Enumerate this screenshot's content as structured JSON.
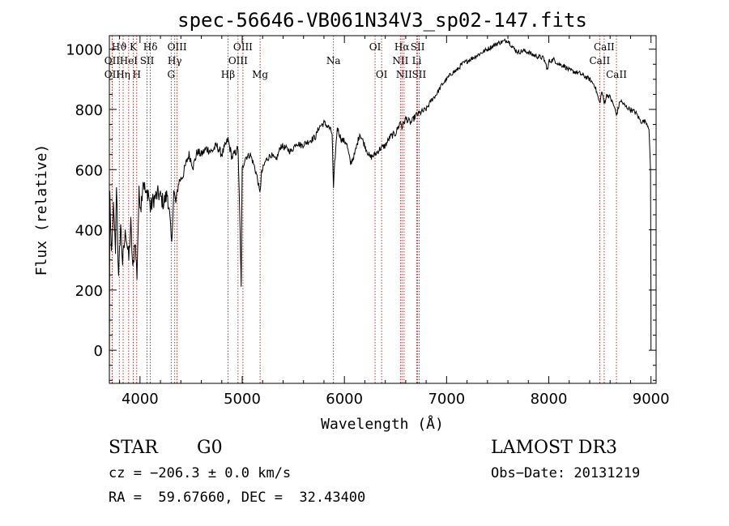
{
  "chart_data": {
    "type": "line",
    "title": "spec-56646-VB061N34V3_sp02-147.fits",
    "xlabel": "Wavelength (Å)",
    "ylabel": "Flux (relative)",
    "xlim": [
      3700,
      9050
    ],
    "ylim": [
      -110,
      1045
    ],
    "xticks": [
      4000,
      5000,
      6000,
      7000,
      8000,
      9000
    ],
    "xtick_labels": [
      "4000",
      "5000",
      "6000",
      "7000",
      "8000",
      "9000"
    ],
    "yticks": [
      0,
      200,
      400,
      600,
      800,
      1000
    ],
    "ytick_labels": [
      "0",
      "200",
      "400",
      "600",
      "800",
      "1000"
    ],
    "spectrum_anchors": [
      [
        3700,
        -110
      ],
      [
        3705,
        520
      ],
      [
        3720,
        300
      ],
      [
        3740,
        470
      ],
      [
        3760,
        330
      ],
      [
        3770,
        560
      ],
      [
        3790,
        230
      ],
      [
        3810,
        420
      ],
      [
        3830,
        290
      ],
      [
        3860,
        400
      ],
      [
        3890,
        300
      ],
      [
        3910,
        420
      ],
      [
        3930,
        260
      ],
      [
        3950,
        370
      ],
      [
        3970,
        250
      ],
      [
        3990,
        520
      ],
      [
        4010,
        480
      ],
      [
        4030,
        570
      ],
      [
        4060,
        510
      ],
      [
        4080,
        530
      ],
      [
        4101,
        470
      ],
      [
        4130,
        500
      ],
      [
        4180,
        520
      ],
      [
        4230,
        490
      ],
      [
        4270,
        520
      ],
      [
        4300,
        400
      ],
      [
        4310,
        350
      ],
      [
        4330,
        530
      ],
      [
        4350,
        490
      ],
      [
        4380,
        560
      ],
      [
        4420,
        580
      ],
      [
        4450,
        620
      ],
      [
        4480,
        650
      ],
      [
        4520,
        610
      ],
      [
        4560,
        660
      ],
      [
        4600,
        650
      ],
      [
        4650,
        670
      ],
      [
        4700,
        660
      ],
      [
        4750,
        680
      ],
      [
        4800,
        650
      ],
      [
        4861,
        700
      ],
      [
        4900,
        640
      ],
      [
        4960,
        670
      ],
      [
        4980,
        380
      ],
      [
        4990,
        220
      ],
      [
        5000,
        600
      ],
      [
        5030,
        640
      ],
      [
        5080,
        650
      ],
      [
        5120,
        610
      ],
      [
        5150,
        570
      ],
      [
        5172,
        520
      ],
      [
        5190,
        590
      ],
      [
        5230,
        630
      ],
      [
        5280,
        650
      ],
      [
        5330,
        630
      ],
      [
        5380,
        680
      ],
      [
        5430,
        670
      ],
      [
        5480,
        660
      ],
      [
        5530,
        690
      ],
      [
        5580,
        680
      ],
      [
        5630,
        690
      ],
      [
        5680,
        700
      ],
      [
        5720,
        710
      ],
      [
        5750,
        740
      ],
      [
        5800,
        755
      ],
      [
        5850,
        740
      ],
      [
        5880,
        720
      ],
      [
        5893,
        530
      ],
      [
        5905,
        620
      ],
      [
        5930,
        740
      ],
      [
        5970,
        700
      ],
      [
        6020,
        690
      ],
      [
        6060,
        620
      ],
      [
        6100,
        650
      ],
      [
        6150,
        720
      ],
      [
        6200,
        680
      ],
      [
        6250,
        640
      ],
      [
        6300,
        650
      ],
      [
        6350,
        670
      ],
      [
        6400,
        680
      ],
      [
        6450,
        710
      ],
      [
        6500,
        720
      ],
      [
        6550,
        760
      ],
      [
        6563,
        740
      ],
      [
        6600,
        770
      ],
      [
        6650,
        755
      ],
      [
        6700,
        780
      ],
      [
        6750,
        790
      ],
      [
        6800,
        800
      ],
      [
        6850,
        830
      ],
      [
        6900,
        850
      ],
      [
        6950,
        880
      ],
      [
        7000,
        900
      ],
      [
        7050,
        920
      ],
      [
        7100,
        930
      ],
      [
        7150,
        950
      ],
      [
        7200,
        960
      ],
      [
        7250,
        970
      ],
      [
        7300,
        980
      ],
      [
        7350,
        990
      ],
      [
        7400,
        1000
      ],
      [
        7450,
        1010
      ],
      [
        7500,
        1020
      ],
      [
        7550,
        1025
      ],
      [
        7600,
        1030
      ],
      [
        7650,
        1005
      ],
      [
        7700,
        990
      ],
      [
        7750,
        995
      ],
      [
        7800,
        990
      ],
      [
        7850,
        980
      ],
      [
        7900,
        975
      ],
      [
        7950,
        970
      ],
      [
        7990,
        930
      ],
      [
        8000,
        960
      ],
      [
        8050,
        965
      ],
      [
        8100,
        950
      ],
      [
        8150,
        945
      ],
      [
        8200,
        930
      ],
      [
        8250,
        925
      ],
      [
        8300,
        920
      ],
      [
        8350,
        910
      ],
      [
        8400,
        900
      ],
      [
        8450,
        880
      ],
      [
        8498,
        820
      ],
      [
        8520,
        860
      ],
      [
        8542,
        820
      ],
      [
        8570,
        850
      ],
      [
        8600,
        840
      ],
      [
        8640,
        810
      ],
      [
        8662,
        780
      ],
      [
        8700,
        830
      ],
      [
        8750,
        810
      ],
      [
        8800,
        800
      ],
      [
        8850,
        790
      ],
      [
        8900,
        760
      ],
      [
        8950,
        760
      ],
      [
        8980,
        740
      ],
      [
        8995,
        600
      ],
      [
        9000,
        150
      ],
      [
        9000,
        0
      ]
    ],
    "spectral_lines": [
      {
        "label": "Hϑ",
        "x": 3797,
        "row": 1
      },
      {
        "label": "OII",
        "x": 3727,
        "row": 2
      },
      {
        "label": "OII",
        "x": 3727,
        "row": 3
      },
      {
        "label": "Hη",
        "x": 3835,
        "row": 3
      },
      {
        "label": "K",
        "x": 3934,
        "row": 1
      },
      {
        "label": "HeI",
        "x": 3889,
        "row": 2
      },
      {
        "label": "H",
        "x": 3968,
        "row": 3
      },
      {
        "label": "Hδ",
        "x": 4101,
        "row": 1
      },
      {
        "label": "SII",
        "x": 4069,
        "row": 2
      },
      {
        "label": "OIII",
        "x": 4363,
        "row": 1
      },
      {
        "label": "Hγ",
        "x": 4340,
        "row": 2
      },
      {
        "label": "G",
        "x": 4305,
        "row": 3
      },
      {
        "label": "OIII",
        "x": 5007,
        "row": 1
      },
      {
        "label": "OIII",
        "x": 4959,
        "row": 2
      },
      {
        "label": "Hβ",
        "x": 4861,
        "row": 3
      },
      {
        "label": "Mg",
        "x": 5175,
        "row": 3
      },
      {
        "label": "Na",
        "x": 5893,
        "row": 2
      },
      {
        "label": "OI",
        "x": 6300,
        "row": 1
      },
      {
        "label": "OI",
        "x": 6364,
        "row": 3
      },
      {
        "label": "Hα",
        "x": 6563,
        "row": 1
      },
      {
        "label": "NII",
        "x": 6548,
        "row": 2
      },
      {
        "label": "NII",
        "x": 6584,
        "row": 3
      },
      {
        "label": "SII",
        "x": 6717,
        "row": 1
      },
      {
        "label": "Li",
        "x": 6708,
        "row": 2
      },
      {
        "label": "SII",
        "x": 6731,
        "row": 3
      },
      {
        "label": "CaII",
        "x": 8542,
        "row": 1
      },
      {
        "label": "CaII",
        "x": 8498,
        "row": 2
      },
      {
        "label": "CaII",
        "x": 8662,
        "row": 3
      }
    ]
  },
  "info": {
    "object_type": "STAR",
    "subclass": "G0",
    "survey": "LAMOST DR3",
    "cz": "cz = −206.3 ± 0.0 km/s",
    "obs_date": "Obs−Date: 20131219",
    "coords": "RA =  59.67660, DEC =  32.43400"
  }
}
